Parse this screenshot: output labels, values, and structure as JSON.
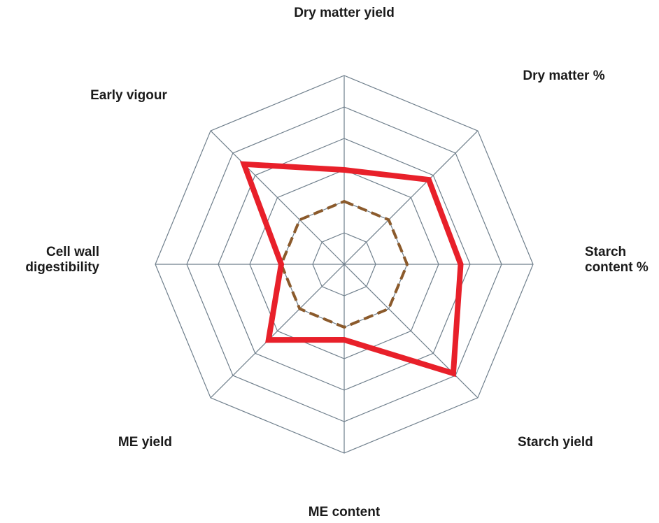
{
  "chart_data": {
    "type": "radar",
    "axes": [
      "Dry matter yield",
      "Dry matter %",
      "Starch content %",
      "Starch yield",
      "ME content",
      "ME yield",
      "Cell wall digestibility",
      "Early vigour"
    ],
    "axis_label_lines": [
      [
        "Dry matter yield"
      ],
      [
        "Dry matter %"
      ],
      [
        "Starch",
        "content %"
      ],
      [
        "Starch yield"
      ],
      [
        "ME content"
      ],
      [
        "ME yield"
      ],
      [
        "Cell wall",
        "digestibility"
      ],
      [
        "Early vigour"
      ]
    ],
    "range": [
      0,
      6
    ],
    "grid_levels": 6,
    "grid": true,
    "legend": "none",
    "series": [
      {
        "color": "#e8202a",
        "style": "solid",
        "values": [
          3.0,
          3.8,
          3.7,
          4.9,
          2.4,
          3.4,
          2.0,
          4.5
        ]
      },
      {
        "color": "#8b5a2b",
        "style": "dashed",
        "values": [
          2.0,
          2.0,
          2.0,
          2.0,
          2.0,
          2.0,
          2.0,
          2.0
        ]
      }
    ]
  }
}
